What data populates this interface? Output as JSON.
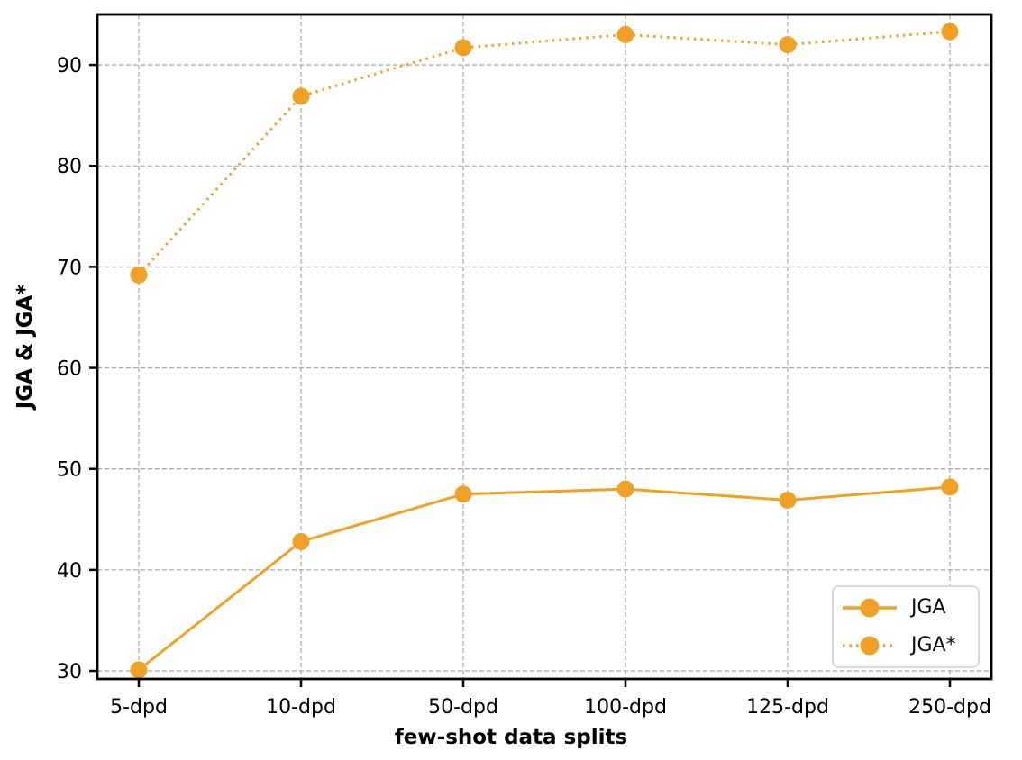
{
  "chart_data": {
    "type": "line",
    "categories": [
      "5-dpd",
      "10-dpd",
      "50-dpd",
      "100-dpd",
      "125-dpd",
      "250-dpd"
    ],
    "series": [
      {
        "name": "JGA",
        "line_style": "solid",
        "values": [
          30.1,
          42.8,
          47.5,
          48.0,
          46.9,
          48.2
        ]
      },
      {
        "name": "JGA*",
        "line_style": "dotted",
        "values": [
          69.2,
          86.9,
          91.7,
          93.0,
          92.0,
          93.3
        ]
      }
    ],
    "title": "",
    "xlabel": "few-shot data splits",
    "ylabel": "JGA & JGA*",
    "yticks": [
      30,
      40,
      50,
      60,
      70,
      80,
      90
    ],
    "ylim": [
      29.2,
      95.0
    ],
    "grid": "dashed, both axes",
    "legend_position": "lower right",
    "colors": {
      "series": "#F0A125",
      "grid": "#aaaaaa",
      "axis": "#000000",
      "text": "#000000",
      "legend_border": "#d8d8d8",
      "background": "#ffffff"
    }
  }
}
